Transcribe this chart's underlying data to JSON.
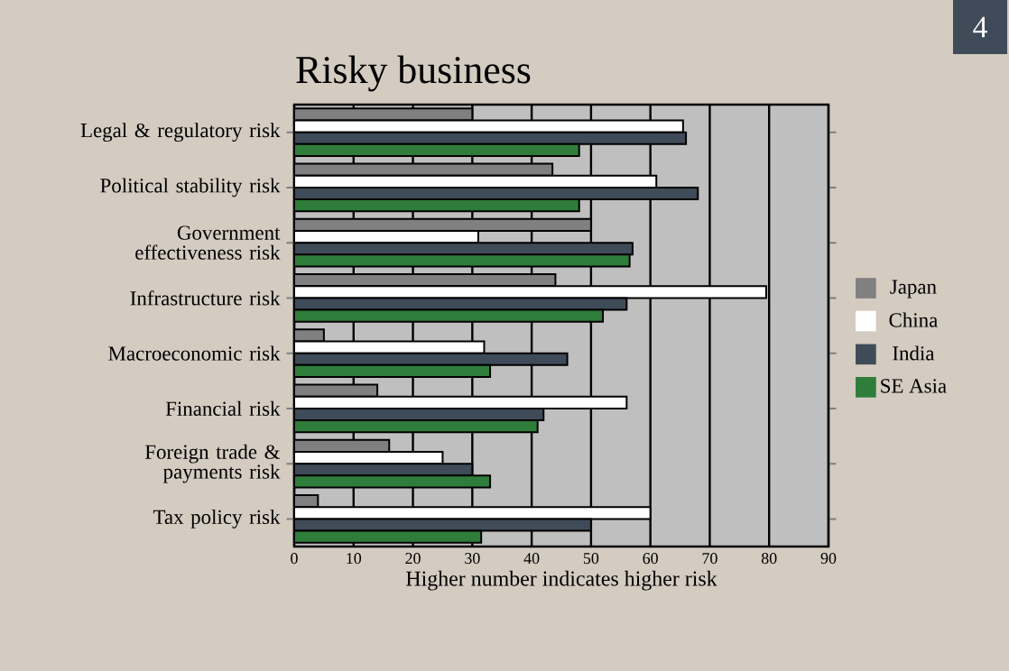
{
  "chart_data": {
    "type": "bar",
    "orientation": "horizontal",
    "title": "Risky business",
    "xlabel": "Higher number indicates higher risk",
    "categories": [
      "Legal & regulatory risk",
      "Political stability risk",
      "Government effectiveness risk",
      "Infrastructure risk",
      "Macroeconomic risk",
      "Financial risk",
      "Foreign trade & payments risk",
      "Tax policy risk"
    ],
    "series": [
      {
        "name": "Japan",
        "color": "#808080",
        "values": [
          30,
          43.5,
          50,
          44,
          5,
          14,
          16,
          4
        ]
      },
      {
        "name": "China",
        "color": "#ffffff",
        "values": [
          65.5,
          61,
          31,
          79.5,
          32,
          56,
          25,
          60
        ]
      },
      {
        "name": "India",
        "color": "#3f4b58",
        "values": [
          66,
          68,
          57,
          56,
          46,
          42,
          30,
          50
        ]
      },
      {
        "name": "SE Asia",
        "color": "#2f7d3b",
        "values": [
          48,
          48,
          56.5,
          52,
          33,
          41,
          33,
          31.5
        ]
      }
    ],
    "xlim": [
      0,
      90
    ],
    "xticks": [
      0,
      10,
      20,
      30,
      40,
      50,
      60,
      70,
      80,
      90
    ],
    "grid": "x",
    "legend": "right",
    "annotations": [
      "4"
    ]
  }
}
